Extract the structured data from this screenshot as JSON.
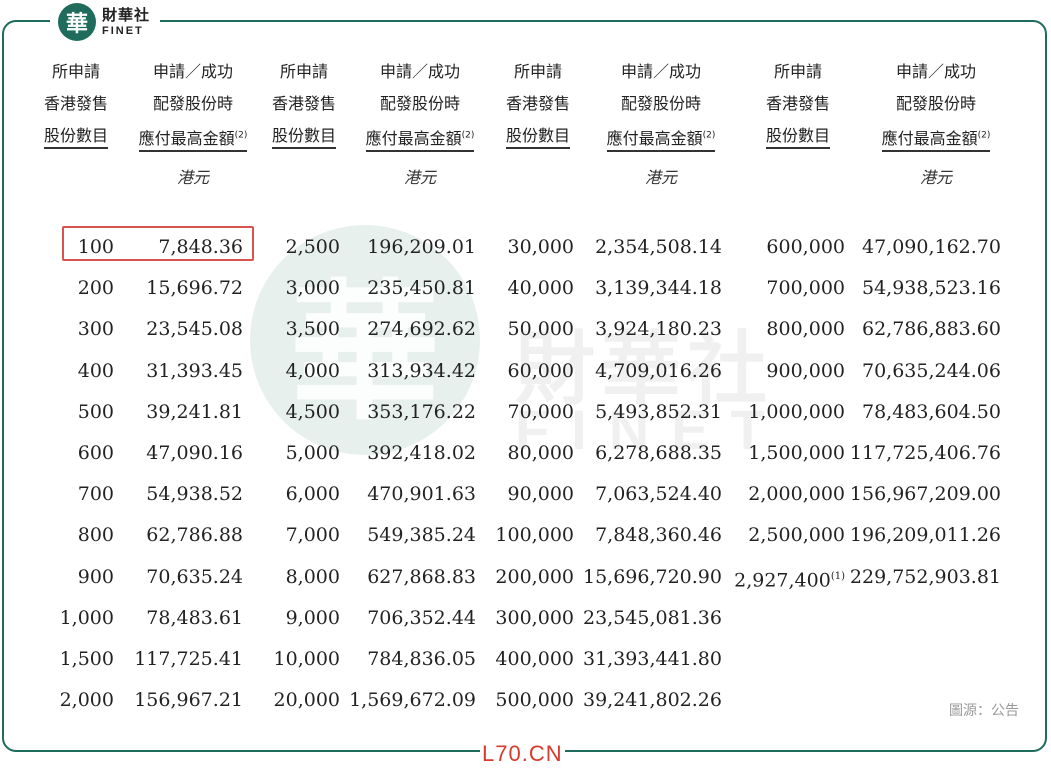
{
  "brand": {
    "logo_char": "華",
    "name_cn": "財華社",
    "name_en": "FINET"
  },
  "watermark": {
    "char": "華",
    "cn": "財華社",
    "en": "FINET"
  },
  "headers": {
    "shares": [
      "所申請",
      "香港發售",
      "股份數目"
    ],
    "amount": [
      "申請／成功",
      "配發股份時",
      "應付最高金額"
    ],
    "amount_note": "(2)"
  },
  "unit": "港元",
  "columns": [
    {
      "shares": [
        "100",
        "200",
        "300",
        "400",
        "500",
        "600",
        "700",
        "800",
        "900",
        "1,000",
        "1,500",
        "2,000"
      ],
      "amounts": [
        "7,848.36",
        "15,696.72",
        "23,545.08",
        "31,393.45",
        "39,241.81",
        "47,090.16",
        "54,938.52",
        "62,786.88",
        "70,635.24",
        "78,483.61",
        "117,725.41",
        "156,967.21"
      ]
    },
    {
      "shares": [
        "2,500",
        "3,000",
        "3,500",
        "4,000",
        "4,500",
        "5,000",
        "6,000",
        "7,000",
        "8,000",
        "9,000",
        "10,000",
        "20,000"
      ],
      "amounts": [
        "196,209.01",
        "235,450.81",
        "274,692.62",
        "313,934.42",
        "353,176.22",
        "392,418.02",
        "470,901.63",
        "549,385.24",
        "627,868.83",
        "706,352.44",
        "784,836.05",
        "1,569,672.09"
      ]
    },
    {
      "shares": [
        "30,000",
        "40,000",
        "50,000",
        "60,000",
        "70,000",
        "80,000",
        "90,000",
        "100,000",
        "200,000",
        "300,000",
        "400,000",
        "500,000"
      ],
      "amounts": [
        "2,354,508.14",
        "3,139,344.18",
        "3,924,180.23",
        "4,709,016.26",
        "5,493,852.31",
        "6,278,688.35",
        "7,063,524.40",
        "7,848,360.46",
        "15,696,720.90",
        "23,545,081.36",
        "31,393,441.80",
        "39,241,802.26"
      ]
    },
    {
      "shares": [
        "600,000",
        "700,000",
        "800,000",
        "900,000",
        "1,000,000",
        "1,500,000",
        "2,000,000",
        "2,500,000",
        "2,927,400"
      ],
      "amounts": [
        "47,090,162.70",
        "54,938,523.16",
        "62,786,883.60",
        "70,635,244.06",
        "78,483,604.50",
        "117,725,406.76",
        "156,967,209.00",
        "196,209,011.26",
        "229,752,903.81"
      ],
      "last_share_note": "(1)"
    }
  ],
  "source": "圖源：公告",
  "site": "L70.CN",
  "colors": {
    "brand_green": "#1f6b5c",
    "highlight_red": "#d9534f",
    "site_red": "#d83a2e"
  }
}
